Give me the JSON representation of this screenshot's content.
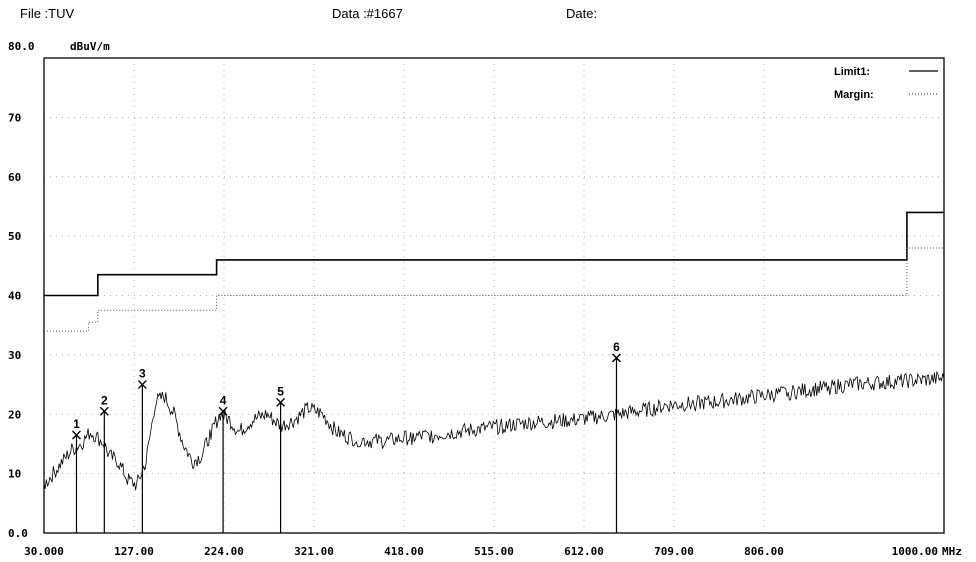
{
  "header": {
    "file": "File :TUV",
    "data": "Data :#1667",
    "date": "Date:"
  },
  "chart_data": {
    "type": "line",
    "title": "",
    "xlabel": "MHz",
    "ylabel": "dBuV/m",
    "xlim": [
      30,
      1000
    ],
    "ylim": [
      0,
      80
    ],
    "x_ticks": [
      "30.000",
      "127.00",
      "224.00",
      "321.00",
      "418.00",
      "515.00",
      "612.00",
      "709.00",
      "806.00",
      "1000.00"
    ],
    "x_tick_values": [
      30,
      127,
      224,
      321,
      418,
      515,
      612,
      709,
      806,
      1000
    ],
    "y_ticks": [
      "0.0",
      "10",
      "20",
      "30",
      "40",
      "50",
      "60",
      "70",
      "80.0"
    ],
    "y_tick_values": [
      0,
      10,
      20,
      30,
      40,
      50,
      60,
      70,
      80
    ],
    "grid": true,
    "legend": [
      {
        "name": "Limit1:",
        "style": "solid"
      },
      {
        "name": "Margin:",
        "style": "dotted"
      }
    ],
    "legend_position": "top-right",
    "series": [
      {
        "name": "Limit1:",
        "style": "solid",
        "x": [
          30,
          88,
          88,
          216,
          216,
          960,
          960,
          1000
        ],
        "y": [
          40,
          40,
          43.5,
          43.5,
          46,
          46,
          54,
          54
        ]
      },
      {
        "name": "Margin:",
        "style": "dotted",
        "x": [
          30,
          78,
          78,
          88,
          88,
          216,
          216,
          960,
          960,
          1000
        ],
        "y": [
          34,
          34,
          35.5,
          35.5,
          37.5,
          37.5,
          40,
          40,
          48,
          48
        ]
      },
      {
        "name": "",
        "style": "noisy",
        "x": [
          30,
          40,
          50,
          60,
          70,
          75,
          80,
          88,
          95,
          100,
          110,
          120,
          130,
          140,
          150,
          160,
          170,
          180,
          190,
          200,
          210,
          220,
          230,
          240,
          255,
          270,
          285,
          300,
          315,
          330,
          345,
          360,
          380,
          400,
          420,
          450,
          500,
          550,
          600,
          650,
          690,
          700,
          750,
          800,
          850,
          900,
          950,
          1000
        ],
        "y": [
          8,
          10,
          12,
          14,
          15,
          16,
          17,
          16,
          15,
          13,
          12,
          9,
          8,
          12,
          22,
          23,
          20,
          15,
          12,
          13,
          17,
          20,
          19,
          17,
          19,
          20,
          18,
          19,
          21,
          20,
          17,
          16,
          15.5,
          15.5,
          16,
          16.5,
          17.5,
          18.5,
          19,
          20,
          21,
          21.5,
          22,
          23,
          24,
          25,
          25.5,
          26
        ]
      }
    ],
    "markers": [
      {
        "label": "1",
        "x": 65,
        "y": 16.5
      },
      {
        "label": "2",
        "x": 95,
        "y": 20.5
      },
      {
        "label": "3",
        "x": 136,
        "y": 25
      },
      {
        "label": "4",
        "x": 223,
        "y": 20.5
      },
      {
        "label": "5",
        "x": 285,
        "y": 22
      },
      {
        "label": "6",
        "x": 647,
        "y": 29.5
      }
    ]
  }
}
